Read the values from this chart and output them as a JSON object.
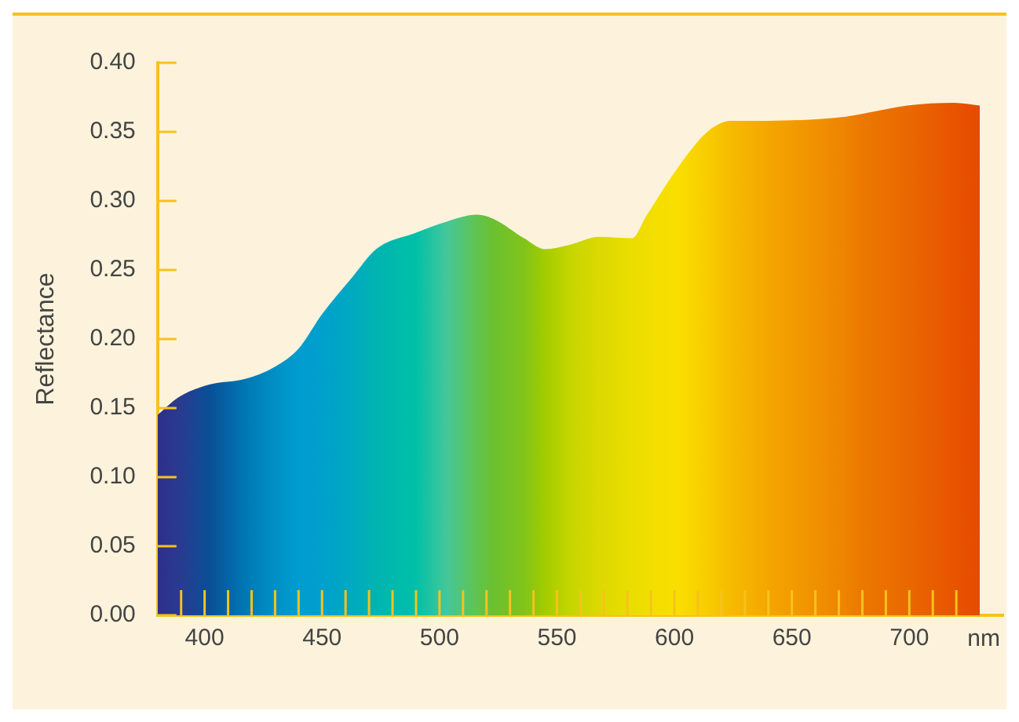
{
  "chart_data": {
    "type": "area",
    "ylabel": "Reflectance",
    "xlabel": "nm",
    "x": [
      380,
      389,
      402,
      417,
      430,
      440,
      450,
      463,
      473,
      490,
      503,
      516,
      523,
      536,
      545,
      555,
      568,
      582,
      588,
      601,
      614,
      624,
      640,
      673,
      680,
      699,
      719,
      730
    ],
    "values": [
      0.145,
      0.158,
      0.167,
      0.171,
      0.18,
      0.193,
      0.218,
      0.245,
      0.265,
      0.277,
      0.285,
      0.29,
      0.287,
      0.273,
      0.265,
      0.268,
      0.274,
      0.273,
      0.289,
      0.323,
      0.35,
      0.358,
      0.358,
      0.361,
      0.363,
      0.369,
      0.371,
      0.369
    ],
    "colors": [
      "#2e2f8a",
      "#2a3a8f",
      "#0a4f96",
      "#0077b3",
      "#0090c5",
      "#009ccf",
      "#00a0cc",
      "#00aac0",
      "#00b4b0",
      "#00c0a8",
      "#45c79a",
      "#60c450",
      "#6cc030",
      "#80c41a",
      "#a3cc00",
      "#c4d500",
      "#dcd900",
      "#ebdd00",
      "#f0de00",
      "#f9df00",
      "#f8cc00",
      "#f6bb00",
      "#f4a600",
      "#ee8300",
      "#ec7800",
      "#e96900",
      "#e85400",
      "#e64a00"
    ],
    "xlim": [
      380,
      740
    ],
    "xticks": [
      {
        "value": 390,
        "label": null
      },
      400,
      {
        "value": 410,
        "label": null
      },
      {
        "value": 420,
        "label": null
      },
      {
        "value": 430,
        "label": null
      },
      {
        "value": 440,
        "label": null
      },
      450,
      {
        "value": 460,
        "label": null
      },
      {
        "value": 470,
        "label": null
      },
      {
        "value": 480,
        "label": null
      },
      {
        "value": 490,
        "label": null
      },
      500,
      {
        "value": 510,
        "label": null
      },
      {
        "value": 520,
        "label": null
      },
      {
        "value": 530,
        "label": null
      },
      {
        "value": 540,
        "label": null
      },
      550,
      {
        "value": 560,
        "label": null
      },
      {
        "value": 570,
        "label": null
      },
      {
        "value": 580,
        "label": null
      },
      {
        "value": 590,
        "label": null
      },
      600,
      {
        "value": 610,
        "label": null
      },
      {
        "value": 620,
        "label": null
      },
      {
        "value": 630,
        "label": null
      },
      {
        "value": 640,
        "label": null
      },
      650,
      {
        "value": 660,
        "label": null
      },
      {
        "value": 670,
        "label": null
      },
      {
        "value": 680,
        "label": null
      },
      {
        "value": 690,
        "label": null
      },
      700,
      {
        "value": 710,
        "label": null
      },
      {
        "value": 720,
        "label": null
      }
    ],
    "ylim": [
      0,
      0.4
    ],
    "yticks": [
      {
        "value": 0,
        "label": "0.00"
      },
      0.05,
      {
        "value": 0.1,
        "label": "0.10"
      },
      0.15,
      {
        "value": 0.2,
        "label": "0.20"
      },
      0.25,
      {
        "value": 0.3,
        "label": "0.30"
      },
      0.35,
      {
        "value": 0.4,
        "label": "0.40"
      }
    ],
    "grid": false,
    "legend": false
  }
}
